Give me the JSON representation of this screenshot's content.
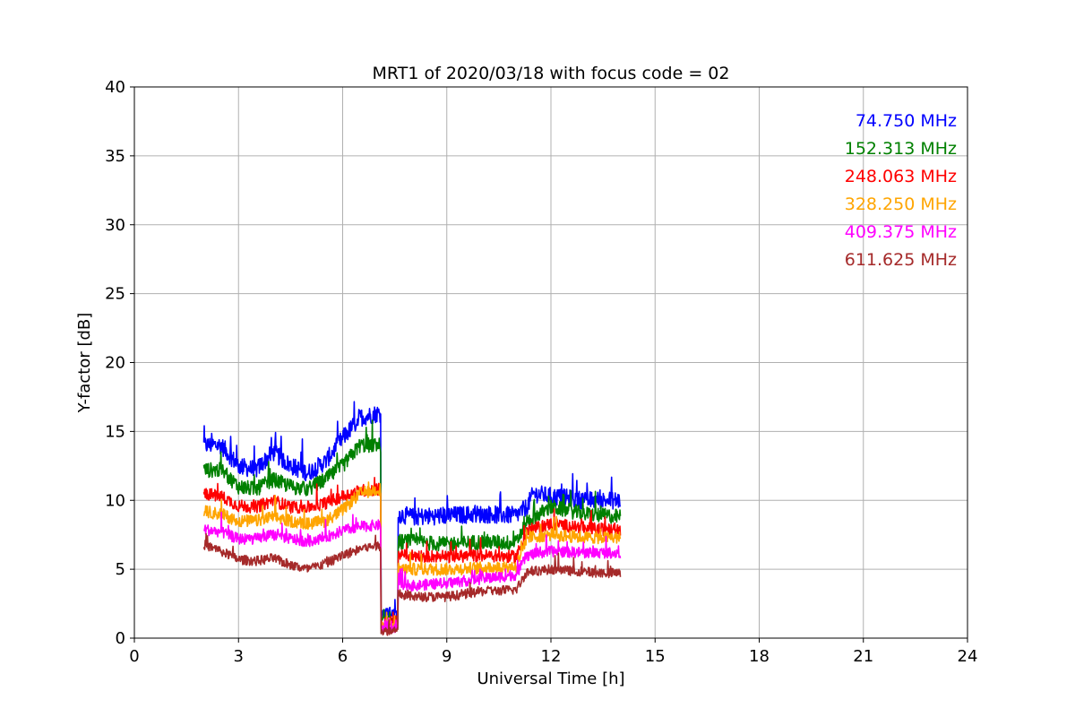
{
  "chart_data": {
    "type": "line",
    "title": "MRT1 of 2020/03/18 with focus code = 02",
    "xlabel": "Universal Time [h]",
    "ylabel": "Y-factor [dB]",
    "xlim": [
      0,
      24
    ],
    "ylim": [
      0,
      40
    ],
    "xticks": [
      0,
      3,
      6,
      9,
      12,
      15,
      18,
      21,
      24
    ],
    "yticks": [
      0,
      5,
      10,
      15,
      20,
      25,
      30,
      35,
      40
    ],
    "grid": true,
    "legend_position": "top-right",
    "x_range": [
      2.0,
      14.0
    ],
    "gap_interval": [
      7.1,
      7.6
    ],
    "series": [
      {
        "name": "74.750 MHz",
        "color": "#0000ff",
        "noise": 1.3,
        "gap_level": 1.8,
        "points": [
          [
            2.0,
            14.0
          ],
          [
            2.5,
            14.0
          ],
          [
            3.0,
            12.5
          ],
          [
            3.5,
            12.2
          ],
          [
            4.0,
            13.5
          ],
          [
            4.5,
            12.5
          ],
          [
            5.0,
            12.0
          ],
          [
            5.5,
            12.8
          ],
          [
            6.0,
            14.5
          ],
          [
            6.5,
            16.0
          ],
          [
            7.0,
            16.3
          ],
          [
            7.1,
            16.3
          ],
          [
            7.6,
            9.0
          ],
          [
            8.0,
            8.8
          ],
          [
            9.0,
            8.9
          ],
          [
            10.0,
            9.0
          ],
          [
            11.0,
            8.9
          ],
          [
            11.3,
            9.5
          ],
          [
            11.5,
            10.5
          ],
          [
            12.0,
            10.3
          ],
          [
            13.0,
            10.0
          ],
          [
            14.0,
            10.0
          ]
        ]
      },
      {
        "name": "152.313 MHz",
        "color": "#008000",
        "noise": 1.1,
        "gap_level": 1.3,
        "points": [
          [
            2.0,
            12.2
          ],
          [
            2.5,
            12.2
          ],
          [
            3.0,
            11.0
          ],
          [
            3.5,
            10.8
          ],
          [
            4.0,
            11.5
          ],
          [
            4.5,
            11.0
          ],
          [
            5.0,
            10.8
          ],
          [
            5.5,
            11.5
          ],
          [
            6.0,
            12.5
          ],
          [
            6.5,
            14.0
          ],
          [
            7.0,
            14.0
          ],
          [
            7.1,
            14.0
          ],
          [
            7.6,
            7.0
          ],
          [
            8.0,
            7.0
          ],
          [
            9.0,
            6.8
          ],
          [
            10.0,
            7.0
          ],
          [
            11.0,
            6.9
          ],
          [
            11.3,
            8.5
          ],
          [
            12.0,
            9.5
          ],
          [
            13.0,
            9.0
          ],
          [
            14.0,
            8.8
          ]
        ]
      },
      {
        "name": "248.063 MHz",
        "color": "#ff0000",
        "noise": 0.9,
        "gap_level": 1.0,
        "points": [
          [
            2.0,
            10.5
          ],
          [
            2.5,
            10.3
          ],
          [
            3.0,
            9.6
          ],
          [
            3.5,
            9.5
          ],
          [
            4.0,
            10.0
          ],
          [
            4.5,
            9.5
          ],
          [
            5.0,
            9.5
          ],
          [
            5.5,
            9.8
          ],
          [
            6.0,
            10.3
          ],
          [
            6.5,
            10.7
          ],
          [
            7.0,
            10.8
          ],
          [
            7.1,
            10.8
          ],
          [
            7.6,
            6.0
          ],
          [
            8.0,
            6.0
          ],
          [
            9.0,
            5.9
          ],
          [
            10.0,
            6.0
          ],
          [
            11.0,
            5.9
          ],
          [
            11.3,
            7.8
          ],
          [
            12.0,
            8.3
          ],
          [
            13.0,
            8.0
          ],
          [
            14.0,
            7.8
          ]
        ]
      },
      {
        "name": "328.250 MHz",
        "color": "#ffa500",
        "noise": 0.9,
        "gap_level": 0.9,
        "points": [
          [
            2.0,
            9.2
          ],
          [
            2.5,
            9.0
          ],
          [
            3.0,
            8.5
          ],
          [
            3.5,
            8.5
          ],
          [
            4.0,
            8.8
          ],
          [
            4.5,
            8.5
          ],
          [
            5.0,
            8.3
          ],
          [
            5.5,
            8.5
          ],
          [
            6.0,
            9.3
          ],
          [
            6.5,
            10.5
          ],
          [
            7.0,
            10.8
          ],
          [
            7.1,
            10.8
          ],
          [
            7.6,
            5.0
          ],
          [
            8.0,
            5.0
          ],
          [
            9.0,
            5.0
          ],
          [
            10.0,
            5.1
          ],
          [
            11.0,
            5.2
          ],
          [
            11.3,
            7.3
          ],
          [
            12.0,
            7.5
          ],
          [
            13.0,
            7.3
          ],
          [
            14.0,
            7.3
          ]
        ]
      },
      {
        "name": "409.375 MHz",
        "color": "#ff00ff",
        "noise": 0.8,
        "gap_level": 0.7,
        "points": [
          [
            2.0,
            7.9
          ],
          [
            2.5,
            7.7
          ],
          [
            3.0,
            7.2
          ],
          [
            3.5,
            7.2
          ],
          [
            4.0,
            7.5
          ],
          [
            4.5,
            7.2
          ],
          [
            5.0,
            7.0
          ],
          [
            5.5,
            7.3
          ],
          [
            6.0,
            7.8
          ],
          [
            6.5,
            8.1
          ],
          [
            7.0,
            8.2
          ],
          [
            7.1,
            8.2
          ],
          [
            7.6,
            4.0
          ],
          [
            8.0,
            3.8
          ],
          [
            9.0,
            4.0
          ],
          [
            10.0,
            4.3
          ],
          [
            11.0,
            4.6
          ],
          [
            11.3,
            6.0
          ],
          [
            12.0,
            6.3
          ],
          [
            13.0,
            6.2
          ],
          [
            14.0,
            6.2
          ]
        ]
      },
      {
        "name": "611.625 MHz",
        "color": "#a52a2a",
        "noise": 0.7,
        "gap_level": 0.5,
        "points": [
          [
            2.0,
            6.8
          ],
          [
            2.5,
            6.3
          ],
          [
            3.0,
            5.7
          ],
          [
            3.5,
            5.6
          ],
          [
            4.0,
            5.8
          ],
          [
            4.5,
            5.3
          ],
          [
            5.0,
            5.0
          ],
          [
            5.5,
            5.4
          ],
          [
            6.0,
            6.0
          ],
          [
            6.5,
            6.5
          ],
          [
            7.0,
            6.7
          ],
          [
            7.1,
            6.7
          ],
          [
            7.6,
            3.2
          ],
          [
            8.0,
            3.0
          ],
          [
            9.0,
            3.0
          ],
          [
            10.0,
            3.4
          ],
          [
            11.0,
            3.5
          ],
          [
            11.3,
            4.8
          ],
          [
            12.0,
            5.0
          ],
          [
            13.0,
            4.8
          ],
          [
            14.0,
            4.7
          ]
        ]
      }
    ]
  }
}
